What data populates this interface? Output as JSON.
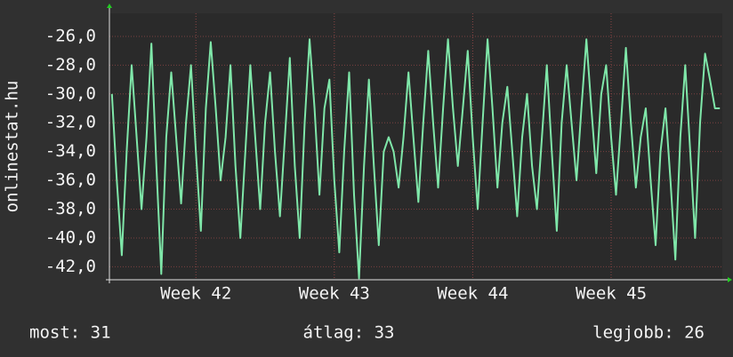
{
  "chart_data": {
    "type": "line",
    "y_label": "onlinestat.hu",
    "categories": [
      null,
      null,
      null,
      null,
      null,
      null,
      null,
      null,
      null,
      null,
      null,
      null,
      null,
      null,
      null,
      null,
      null,
      "Week 42",
      null,
      null,
      null,
      null,
      null,
      null,
      null,
      null,
      null,
      null,
      null,
      null,
      null,
      null,
      null,
      null,
      null,
      null,
      null,
      null,
      null,
      null,
      null,
      null,
      null,
      null,
      null,
      "Week 43",
      null,
      null,
      null,
      null,
      null,
      null,
      null,
      null,
      null,
      null,
      null,
      null,
      null,
      null,
      null,
      null,
      null,
      null,
      null,
      null,
      null,
      null,
      null,
      null,
      null,
      null,
      null,
      "Week 44",
      null,
      null,
      null,
      null,
      null,
      null,
      null,
      null,
      null,
      null,
      null,
      null,
      null,
      null,
      null,
      null,
      null,
      null,
      null,
      null,
      null,
      null,
      null,
      null,
      null,
      null,
      null,
      "Week 45",
      null,
      null,
      null,
      null,
      null,
      null,
      null,
      null,
      null,
      null,
      null,
      null,
      null,
      null,
      null,
      null,
      null,
      null,
      null,
      null,
      null,
      null
    ],
    "series": [
      {
        "color": "#7fe7a9",
        "values": [
          -30,
          -36,
          -41.2,
          -34,
          -28,
          -33,
          -38,
          -33,
          -26.5,
          -35,
          -42.5,
          -33,
          -28.5,
          -33,
          -37.6,
          -32,
          -28,
          -34,
          -39.5,
          -31,
          -26.4,
          -31,
          -36,
          -33,
          -28,
          -35,
          -40,
          -34,
          -28,
          -33,
          -38,
          -32,
          -28.5,
          -34,
          -38.5,
          -33,
          -27.5,
          -35,
          -40,
          -32,
          -26.2,
          -31,
          -37,
          -31,
          -29,
          -36,
          -41,
          -34,
          -28.5,
          -37,
          -42.8,
          -35,
          -29,
          -35,
          -40.5,
          -34,
          -33,
          -34,
          -36.5,
          -33,
          -28.5,
          -33,
          -37.5,
          -32,
          -27,
          -32,
          -36.5,
          -31,
          -26.2,
          -31,
          -35,
          -31,
          -27,
          -33,
          -38,
          -32,
          -26.2,
          -31,
          -36.5,
          -32,
          -29.5,
          -34,
          -38.5,
          -33,
          -30,
          -35,
          -38,
          -33,
          -28,
          -34,
          -39.5,
          -32,
          -28,
          -32,
          -36,
          -31,
          -26.2,
          -31,
          -35.5,
          -30,
          -28,
          -33,
          -37,
          -32,
          -26.8,
          -32,
          -36.5,
          -33,
          -31,
          -36,
          -40.5,
          -34,
          -31,
          -36,
          -41.5,
          -33,
          -28,
          -34,
          -40,
          -32,
          -27.2,
          -29,
          -31,
          -31
        ]
      }
    ],
    "ylim": [
      -42.9,
      -24.4
    ],
    "yticks": [
      {
        "value": -42,
        "label": "-42,0"
      },
      {
        "value": -40,
        "label": "-40,0"
      },
      {
        "value": -38,
        "label": "-38,0"
      },
      {
        "value": -36,
        "label": "-36,0"
      },
      {
        "value": -34,
        "label": "-34,0"
      },
      {
        "value": -32,
        "label": "-32,0"
      },
      {
        "value": -30,
        "label": "-30,0"
      },
      {
        "value": -28,
        "label": "-28,0"
      },
      {
        "value": -26,
        "label": "-26,0"
      }
    ],
    "grid": true,
    "footer": [
      "most: 31",
      "átlag: 33",
      "legjobb: 26"
    ]
  }
}
